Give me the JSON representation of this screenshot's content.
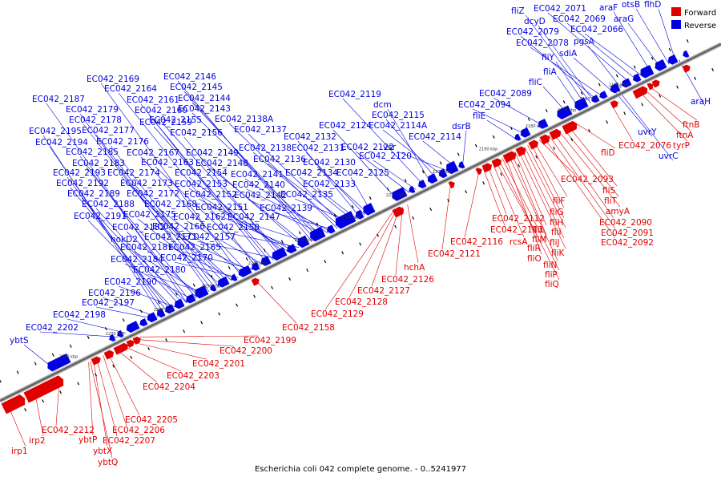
{
  "legend": {
    "forward": {
      "label": "Forward",
      "color": "#e00000"
    },
    "reverse": {
      "label": "Reverse",
      "color": "#0000e0"
    }
  },
  "caption": "Escherichia coli 042 complete genome. - 0..5241977",
  "colors": {
    "forward": "#e00000",
    "reverse": "#0000e0",
    "axis": "#808080"
  },
  "kbp_marks": [
    "2150 kbp",
    "2160 kbp",
    "2170 kbp",
    "2180 kbp",
    "2190 kbp",
    "2200 kbp",
    "2210 kbp",
    "2220 kbp",
    "2230 kbp",
    "2240 kbp",
    "2250 kbp",
    "2260 kbp",
    "2270 kbp",
    "2280 kbp"
  ],
  "reverse_genes": [
    {
      "name": "araH"
    },
    {
      "name": "flhD"
    },
    {
      "name": "otsB"
    },
    {
      "name": "araG"
    },
    {
      "name": "araF"
    },
    {
      "name": "EC042_2066"
    },
    {
      "name": "EC042_2069"
    },
    {
      "name": "EC042_2071"
    },
    {
      "name": "pgsA"
    },
    {
      "name": "sdiA"
    },
    {
      "name": "EC042_2078"
    },
    {
      "name": "EC042_2079"
    },
    {
      "name": "dcyD"
    },
    {
      "name": "fliZ"
    },
    {
      "name": "fliY"
    },
    {
      "name": "fliA"
    },
    {
      "name": "fliC"
    },
    {
      "name": "EC042_2089"
    },
    {
      "name": "EC042_2094"
    },
    {
      "name": "fliE"
    },
    {
      "name": "dsrB"
    },
    {
      "name": "EC042_2114"
    },
    {
      "name": "vsr"
    },
    {
      "name": "EC042_2114A"
    },
    {
      "name": "EC042_2115"
    },
    {
      "name": "dcm"
    },
    {
      "name": "EC042_2119"
    },
    {
      "name": "EC042_2120"
    },
    {
      "name": "EC042_2122"
    },
    {
      "name": "EC042_2124"
    },
    {
      "name": "EC042_2125"
    },
    {
      "name": "EC042_2130"
    },
    {
      "name": "EC042_2131"
    },
    {
      "name": "EC042_2132"
    },
    {
      "name": "EC042_2133"
    },
    {
      "name": "EC042_2134"
    },
    {
      "name": "EC042_2135"
    },
    {
      "name": "EC042_2136"
    },
    {
      "name": "EC042_2137"
    },
    {
      "name": "EC042_2138"
    },
    {
      "name": "EC042_2138A"
    },
    {
      "name": "EC042_2139"
    },
    {
      "name": "EC042_2140"
    },
    {
      "name": "EC042_2141"
    },
    {
      "name": "EC042_2142"
    },
    {
      "name": "EC042_2143"
    },
    {
      "name": "EC042_2144"
    },
    {
      "name": "EC042_2145"
    },
    {
      "name": "EC042_2146"
    },
    {
      "name": "EC042_2147"
    },
    {
      "name": "EC042_2148"
    },
    {
      "name": "EC042_2149"
    },
    {
      "name": "EC042_2150"
    },
    {
      "name": "EC042_2151"
    },
    {
      "name": "EC042_2152"
    },
    {
      "name": "EC042_2153"
    },
    {
      "name": "EC042_2154"
    },
    {
      "name": "EC042_2155"
    },
    {
      "name": "EC042_2156"
    },
    {
      "name": "EC042_2157"
    },
    {
      "name": "EC042_2159"
    },
    {
      "name": "EC042_2160"
    },
    {
      "name": "EC042_2161"
    },
    {
      "name": "EC042_2162"
    },
    {
      "name": "EC042_2163"
    },
    {
      "name": "EC042_2164"
    },
    {
      "name": "EC042_2165"
    },
    {
      "name": "EC042_2166"
    },
    {
      "name": "EC042_2167"
    },
    {
      "name": "EC042_2168"
    },
    {
      "name": "EC042_2169"
    },
    {
      "name": "EC042_2170"
    },
    {
      "name": "EC042_2171"
    },
    {
      "name": "EC042_2172"
    },
    {
      "name": "EC042_2173"
    },
    {
      "name": "EC042_2174"
    },
    {
      "name": "EC042_2175"
    },
    {
      "name": "EC042_2176"
    },
    {
      "name": "EC042_2177"
    },
    {
      "name": "EC042_2178"
    },
    {
      "name": "EC042_2179"
    },
    {
      "name": "EC042_2180"
    },
    {
      "name": "EC042_2181"
    },
    {
      "name": "EC042_2182"
    },
    {
      "name": "EC042_2183"
    },
    {
      "name": "EC042_2184"
    },
    {
      "name": "EC042_2185"
    },
    {
      "name": "EC042_2187"
    },
    {
      "name": "EC042_2188"
    },
    {
      "name": "EC042_2189"
    },
    {
      "name": "EC042_2190"
    },
    {
      "name": "EC042_2191"
    },
    {
      "name": "EC042_2192"
    },
    {
      "name": "EC042_2193"
    },
    {
      "name": "EC042_2194"
    },
    {
      "name": "EC042_2195"
    },
    {
      "name": "EC042_2196"
    },
    {
      "name": "EC042_2197"
    },
    {
      "name": "EC042_2198"
    },
    {
      "name": "EC042_2202"
    },
    {
      "name": "hokD2"
    },
    {
      "name": "ybtS"
    },
    {
      "name": "uvrY"
    },
    {
      "name": "uvrC"
    }
  ],
  "forward_genes": [
    {
      "name": "ftnB"
    },
    {
      "name": "ftnA"
    },
    {
      "name": "tyrP"
    },
    {
      "name": "EC042_2076"
    },
    {
      "name": "fliD"
    },
    {
      "name": "fliS"
    },
    {
      "name": "fliT"
    },
    {
      "name": "amyA"
    },
    {
      "name": "EC042_2090"
    },
    {
      "name": "EC042_2091"
    },
    {
      "name": "EC042_2092"
    },
    {
      "name": "EC042_2093"
    },
    {
      "name": "fliF"
    },
    {
      "name": "fliG"
    },
    {
      "name": "fliH"
    },
    {
      "name": "fliI"
    },
    {
      "name": "fliJ"
    },
    {
      "name": "fliK"
    },
    {
      "name": "fliL"
    },
    {
      "name": "fliM"
    },
    {
      "name": "fliN"
    },
    {
      "name": "fliO"
    },
    {
      "name": "fliP"
    },
    {
      "name": "fliQ"
    },
    {
      "name": "fliR"
    },
    {
      "name": "rcsA"
    },
    {
      "name": "EC042_2112"
    },
    {
      "name": "EC042_2113"
    },
    {
      "name": "EC042_2116"
    },
    {
      "name": "EC042_2121"
    },
    {
      "name": "hchA"
    },
    {
      "name": "EC042_2126"
    },
    {
      "name": "EC042_2127"
    },
    {
      "name": "EC042_2128"
    },
    {
      "name": "EC042_2129"
    },
    {
      "name": "EC042_2158"
    },
    {
      "name": "EC042_2199"
    },
    {
      "name": "EC042_2200"
    },
    {
      "name": "EC042_2201"
    },
    {
      "name": "EC042_2203"
    },
    {
      "name": "EC042_2204"
    },
    {
      "name": "EC042_2205"
    },
    {
      "name": "EC042_2206"
    },
    {
      "name": "EC042_2207"
    },
    {
      "name": "EC042_2212"
    },
    {
      "name": "ybtP"
    },
    {
      "name": "ybtX"
    },
    {
      "name": "ybtQ"
    },
    {
      "name": "irp2"
    },
    {
      "name": "irp1"
    }
  ]
}
